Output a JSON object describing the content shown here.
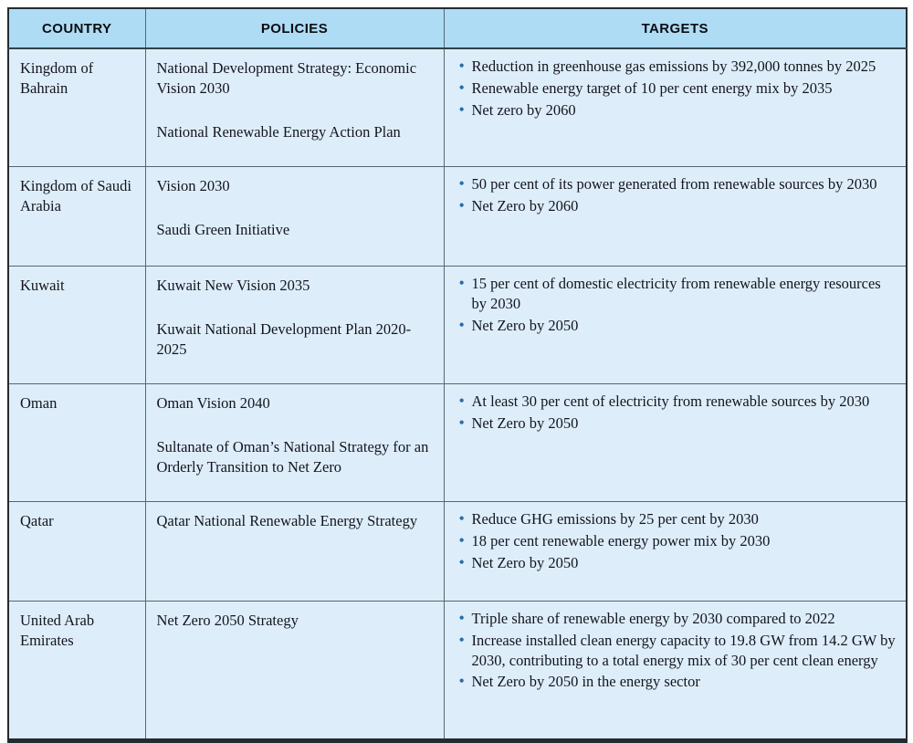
{
  "table": {
    "headers": [
      "COUNTRY",
      "POLICIES",
      "TARGETS"
    ],
    "rows": [
      {
        "country": "Kingdom of Bahrain",
        "policies": [
          "National Development Strategy: Economic Vision 2030",
          "National Renewable Energy Action Plan"
        ],
        "targets": [
          "Reduction in greenhouse gas emissions by 392,000 tonnes by 2025",
          "Renewable energy target of 10 per cent energy mix by 2035",
          "Net zero by 2060"
        ]
      },
      {
        "country": "Kingdom of Saudi Arabia",
        "policies": [
          "Vision 2030",
          "Saudi Green Initiative"
        ],
        "targets": [
          "50 per cent of its power generated from renewable sources by 2030",
          "Net Zero by 2060"
        ]
      },
      {
        "country": "Kuwait",
        "policies": [
          "Kuwait New Vision 2035",
          "Kuwait National Development Plan 2020-2025"
        ],
        "targets": [
          "15 per cent of domestic electricity from renewable energy resources by 2030",
          "Net Zero by 2050"
        ]
      },
      {
        "country": "Oman",
        "policies": [
          "Oman Vision 2040",
          "Sultanate of Oman’s National Strategy for an Orderly Transition to Net Zero"
        ],
        "targets": [
          "At least 30 per cent of electricity from renewable sources by 2030",
          "Net Zero by 2050"
        ]
      },
      {
        "country": "Qatar",
        "policies": [
          "Qatar National Renewable Energy Strategy"
        ],
        "targets": [
          "Reduce GHG emissions by 25 per cent by 2030",
          "18 per cent renewable energy power mix by 2030",
          "Net Zero by 2050"
        ]
      },
      {
        "country": "United Arab Emirates",
        "policies": [
          "Net Zero 2050 Strategy"
        ],
        "targets": [
          "Triple share of renewable energy by 2030 compared to 2022",
          "Increase installed clean energy capacity to 19.8 GW from 14.2 GW by 2030, contributing to a total energy mix of 30 per cent clean energy",
          "Net Zero by 2050 in the energy sector"
        ]
      }
    ]
  },
  "colors": {
    "header_bg": "#aedcf5",
    "cell_bg": "#ddeefa",
    "bullet": "#2a6ca6",
    "inner_border": "#566771",
    "outer_border": "#242b31",
    "text": "#14141e"
  }
}
